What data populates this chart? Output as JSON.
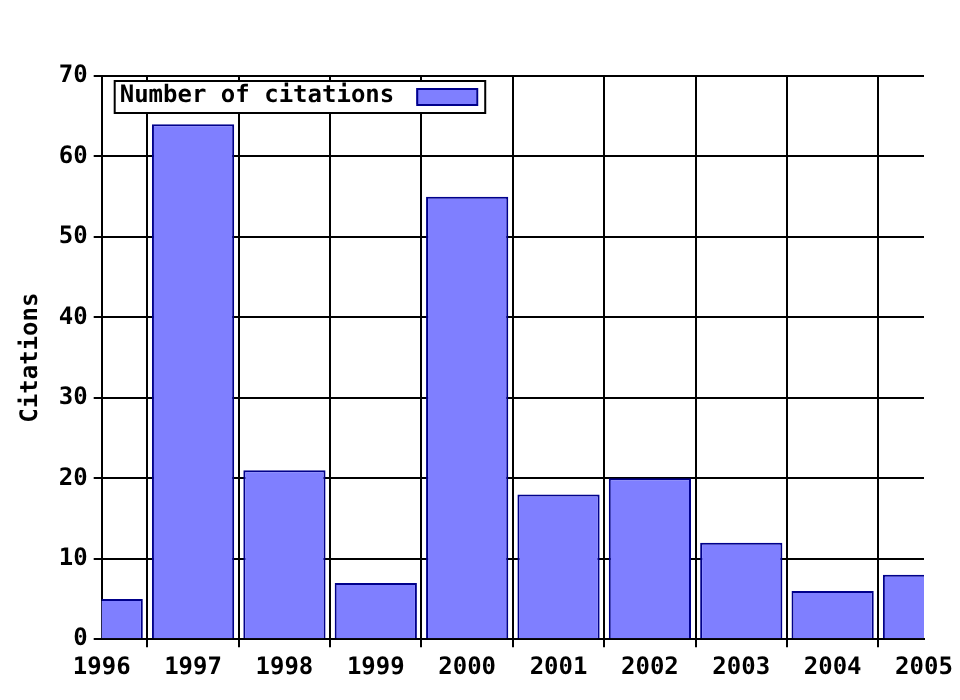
{
  "chart_data": {
    "type": "bar",
    "ylabel": "Citations",
    "x": [
      1996,
      1997,
      1998,
      1999,
      2000,
      2001,
      2002,
      2003,
      2004,
      2005
    ],
    "series": [
      {
        "name": "Number of citations",
        "color": "#7f7fff",
        "values": [
          5,
          64,
          21,
          7,
          55,
          18,
          20,
          12,
          6,
          8
        ]
      }
    ],
    "xlim": [
      1996,
      2005
    ],
    "xticks": [
      1996,
      1997,
      1998,
      1999,
      2000,
      2001,
      2002,
      2003,
      2004,
      2005
    ],
    "ylim": [
      0,
      70
    ],
    "yticks": [
      0,
      10,
      20,
      30,
      40,
      50,
      60,
      70
    ],
    "grid": true,
    "legend": "top left"
  }
}
